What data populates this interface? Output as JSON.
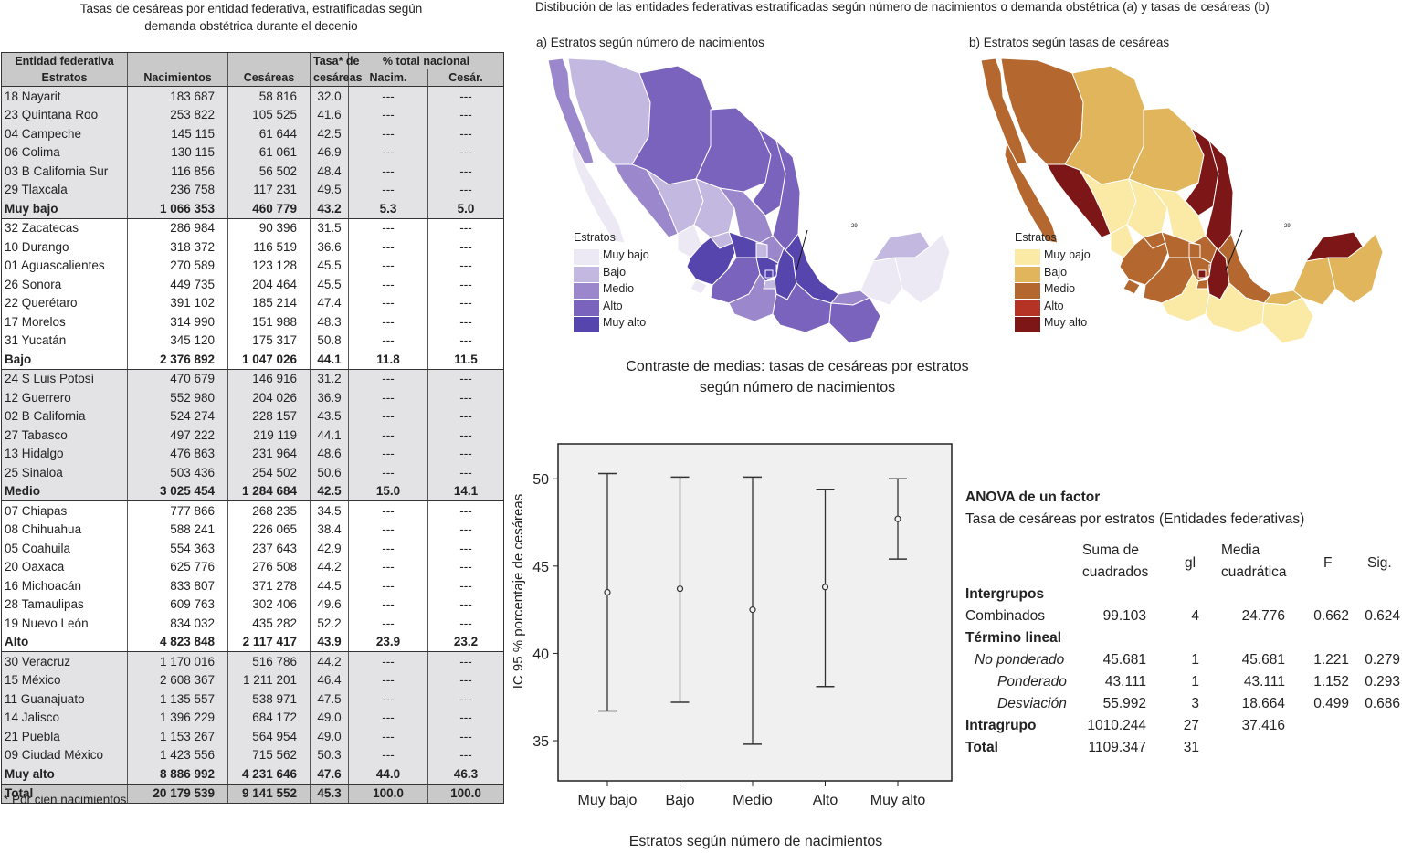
{
  "left_title": [
    "Tasas de cesáreas por entidad federativa, estratificadas según",
    "demanda obstétrica  durante el decenio"
  ],
  "table": {
    "header": {
      "col0_top": "Entidad federativa",
      "col0_bottom": "Estratos",
      "births": "Nacimientos",
      "cesareans": "Cesáreas",
      "rate_top": "Tasa* de",
      "rate_bottom": "cesáreas",
      "pct_group": "% total nacional",
      "pct_births": "Nacim.",
      "pct_cesareans": "Cesár."
    },
    "groups": [
      {
        "rows": [
          [
            "18 Nayarit",
            "183 687",
            "58 816",
            "32.0",
            "---",
            "---"
          ],
          [
            "23 Quintana Roo",
            "253 822",
            "105 525",
            "41.6",
            "---",
            "---"
          ],
          [
            "04 Campeche",
            "145 115",
            "61 644",
            "42.5",
            "---",
            "---"
          ],
          [
            "06 Colima",
            "130 115",
            "61 061",
            "46.9",
            "---",
            "---"
          ],
          [
            "03 B California Sur",
            "116 856",
            "56 502",
            "48.4",
            "---",
            "---"
          ],
          [
            "29 Tlaxcala",
            "236 758",
            "117 231",
            "49.5",
            "---",
            "---"
          ]
        ],
        "summary": [
          "Muy bajo",
          "1 066 353",
          "460 779",
          "43.2",
          "5.3",
          "5.0"
        ]
      },
      {
        "rows": [
          [
            "32 Zacatecas",
            "286 984",
            "90 396",
            "31.5",
            "---",
            "---"
          ],
          [
            "10 Durango",
            "318 372",
            "116 519",
            "36.6",
            "---",
            "---"
          ],
          [
            "01 Aguascalientes",
            "270 589",
            "123 128",
            "45.5",
            "---",
            "---"
          ],
          [
            "26 Sonora",
            "449 735",
            "204 464",
            "45.5",
            "---",
            "---"
          ],
          [
            "22 Querétaro",
            "391 102",
            "185 214",
            "47.4",
            "---",
            "---"
          ],
          [
            "17 Morelos",
            "314 990",
            "151 988",
            "48.3",
            "---",
            "---"
          ],
          [
            "31 Yucatán",
            "345 120",
            "175 317",
            "50.8",
            "---",
            "---"
          ]
        ],
        "summary": [
          "Bajo",
          "2 376 892",
          "1 047 026",
          "44.1",
          "11.8",
          "11.5"
        ]
      },
      {
        "rows": [
          [
            "24 S Luis  Potosí",
            "470 679",
            "146 916",
            "31.2",
            "---",
            "---"
          ],
          [
            "12 Guerrero",
            "552 980",
            "204 026",
            "36.9",
            "---",
            "---"
          ],
          [
            "02 B California",
            "524 274",
            "228 157",
            "43.5",
            "---",
            "---"
          ],
          [
            "27 Tabasco",
            "497 222",
            "219 119",
            "44.1",
            "---",
            "---"
          ],
          [
            "13 Hidalgo",
            "476 863",
            "231 964",
            "48.6",
            "---",
            "---"
          ],
          [
            "25 Sinaloa",
            "503 436",
            "254 502",
            "50.6",
            "---",
            "---"
          ]
        ],
        "summary": [
          "Medio",
          "3 025 454",
          "1 284 684",
          "42.5",
          "15.0",
          "14.1"
        ]
      },
      {
        "rows": [
          [
            "07 Chiapas",
            "777 866",
            "268 235",
            "34.5",
            "---",
            "---"
          ],
          [
            "08 Chihuahua",
            "588 241",
            "226 065",
            "38.4",
            "---",
            "---"
          ],
          [
            "05 Coahuila",
            "554 363",
            "237 643",
            "42.9",
            "---",
            "---"
          ],
          [
            "20 Oaxaca",
            "625 776",
            "276 508",
            "44.2",
            "---",
            "---"
          ],
          [
            "16 Michoacán",
            "833 807",
            "371 278",
            "44.5",
            "---",
            "---"
          ],
          [
            "28 Tamaulipas",
            "609 763",
            "302 406",
            "49.6",
            "---",
            "---"
          ],
          [
            "19 Nuevo León",
            "834 032",
            "435 282",
            "52.2",
            "---",
            "---"
          ]
        ],
        "summary": [
          "Alto",
          "4 823 848",
          "2 117 417",
          "43.9",
          "23.9",
          "23.2"
        ]
      },
      {
        "rows": [
          [
            "30 Veracruz",
            "1 170 016",
            "516 786",
            "44.2",
            "---",
            "---"
          ],
          [
            "15 México",
            "2 608 367",
            "1 211 201",
            "46.4",
            "---",
            "---"
          ],
          [
            "11 Guanajuato",
            "1 135 557",
            "538 971",
            "47.5",
            "---",
            "---"
          ],
          [
            "14 Jalisco",
            "1 396 229",
            "684 172",
            "49.0",
            "---",
            "---"
          ],
          [
            "21 Puebla",
            "1 153 267",
            "564 954",
            "49.0",
            "---",
            "---"
          ],
          [
            "09 Ciudad México",
            "1 423 556",
            "715 562",
            "50.3",
            "---",
            "---"
          ]
        ],
        "summary": [
          "Muy alto",
          "8 886 992",
          "4 231 646",
          "47.6",
          "44.0",
          "46.3"
        ]
      }
    ],
    "total": [
      "Total",
      "20 179 539",
      "9 141 552",
      "45.3",
      "100.0",
      "100.0"
    ]
  },
  "footnote": "* Por cien nacimientos",
  "maps_title": "Distibución de las entidades federativas estratificadas según número de nacimientos o demanda obstétrica (a) y tasas de cesáreas (b)",
  "map_a": {
    "subtitle": "a) Estratos según número de nacimientos",
    "legend_title": "Estratos",
    "legend": [
      {
        "label": "Muy bajo",
        "color": "#ece8f4"
      },
      {
        "label": "Bajo",
        "color": "#c3b8e0"
      },
      {
        "label": "Medio",
        "color": "#9b88cc"
      },
      {
        "label": "Alto",
        "color": "#7a63bd"
      },
      {
        "label": "Muy alto",
        "color": "#5645ad"
      }
    ],
    "callout": "29"
  },
  "map_b": {
    "subtitle": "b) Estratos según tasas de cesáreas",
    "legend_title": "Estratos",
    "legend": [
      {
        "label": "Muy bajo",
        "color": "#fbe9a6"
      },
      {
        "label": "Bajo",
        "color": "#e1b55b"
      },
      {
        "label": "Medio",
        "color": "#b4672e"
      },
      {
        "label": "Alto",
        "color": "#b53325"
      },
      {
        "label": "Muy alto",
        "color": "#7d1616"
      }
    ],
    "callout": "29"
  },
  "chart_data": {
    "type": "errorbar",
    "title": "Contraste de medias:  tasas de cesáreas por estratos según número de nacimientos",
    "xlabel": "Estratos  según número de nacimientos",
    "ylabel": "IC 95 % porcentaje de cesáreas",
    "categories": [
      "Muy bajo",
      "Bajo",
      "Medio",
      "Alto",
      "Muy alto"
    ],
    "mean": [
      43.5,
      43.7,
      42.5,
      43.8,
      47.7
    ],
    "lower": [
      36.7,
      37.2,
      34.8,
      38.1,
      45.4
    ],
    "upper": [
      50.3,
      50.1,
      50.1,
      49.4,
      50.0
    ],
    "yticks": [
      35,
      40,
      45,
      50
    ],
    "ylim": [
      32.7,
      52.0
    ]
  },
  "anova": {
    "title": "ANOVA de un factor",
    "subtitle": "Tasa de cesáreas por estratos (Entidades federativas)",
    "headers": {
      "ss_top": "Suma    de",
      "ss_bottom": "cuadrados",
      "gl": "gl",
      "ms_top": "Media",
      "ms_bottom": "cuadrática",
      "f": "F",
      "sig": "Sig."
    },
    "rows": [
      {
        "label": "Intergrupos",
        "style": "b",
        "ss": "",
        "gl": "",
        "ms": "",
        "f": "",
        "sig": ""
      },
      {
        "label": "Combinados",
        "style": "",
        "ss": "99.103",
        "gl": "4",
        "ms": "24.776",
        "f": "0.662",
        "sig": "0.624"
      },
      {
        "label": "Término lineal",
        "style": "b",
        "ss": "",
        "gl": "",
        "ms": "",
        "f": "",
        "sig": ""
      },
      {
        "label": "No ponderado",
        "style": "i1",
        "ss": "45.681",
        "gl": "1",
        "ms": "45.681",
        "f": "1.221",
        "sig": "0.279"
      },
      {
        "label": "Ponderado",
        "style": "i2",
        "ss": "43.111",
        "gl": "1",
        "ms": "43.111",
        "f": "1.152",
        "sig": "0.293"
      },
      {
        "label": "Desviación",
        "style": "i2",
        "ss": "55.992",
        "gl": "3",
        "ms": "18.664",
        "f": "0.499",
        "sig": "0.686"
      },
      {
        "label": "Intragrupo",
        "style": "b",
        "ss": "1010.244",
        "gl": "27",
        "ms": "37.416",
        "f": "",
        "sig": ""
      },
      {
        "label": "Total",
        "style": "b",
        "ss": "1109.347",
        "gl": "31",
        "ms": "",
        "f": "",
        "sig": ""
      }
    ]
  }
}
